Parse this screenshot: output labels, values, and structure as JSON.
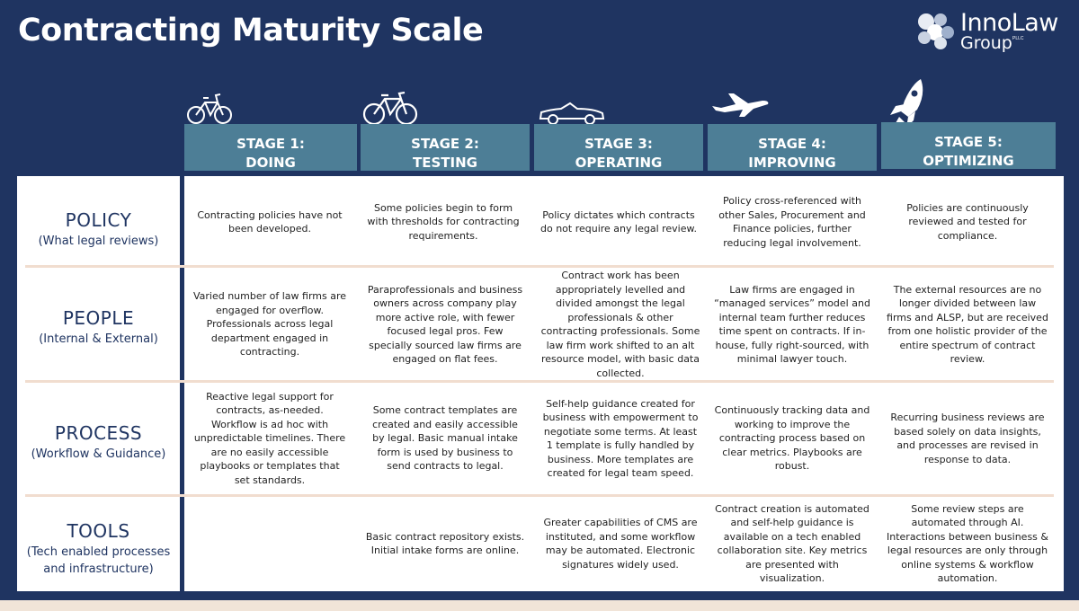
{
  "title": "Contracting Maturity Scale",
  "logo": {
    "line1": "InnoLaw",
    "line2": "Group",
    "suffix": "PLLC"
  },
  "colors": {
    "background": "#1f3461",
    "header": "#4d7e96",
    "separator": "#f1ddcf",
    "icon": "#ffffff"
  },
  "stages": [
    {
      "line1": "STAGE 1:",
      "line2": "DOING",
      "icon": "bicycle-icon"
    },
    {
      "line1": "STAGE 2:",
      "line2": "TESTING",
      "icon": "bicycle-icon"
    },
    {
      "line1": "STAGE 3:",
      "line2": "OPERATING",
      "icon": "car-icon"
    },
    {
      "line1": "STAGE 4:",
      "line2": "IMPROVING",
      "icon": "airplane-icon"
    },
    {
      "line1": "STAGE 5:",
      "line2": "OPTIMIZING",
      "icon": "rocket-icon"
    }
  ],
  "rows": [
    {
      "label": "POLICY",
      "sub": "(What legal reviews)",
      "cells": [
        "Contracting policies have not been developed.",
        "Some policies begin to form with thresholds for contracting requirements.",
        "Policy dictates which contracts do not require any legal review.",
        "Policy cross-referenced with other Sales, Procurement and Finance policies, further reducing legal involvement.",
        "Policies are continuously reviewed and tested for compliance."
      ]
    },
    {
      "label": "PEOPLE",
      "sub": "(Internal & External)",
      "cells": [
        "Varied number of law firms are engaged for overflow. Professionals across legal department engaged in contracting.",
        "Paraprofessionals and business owners across company play more active role, with fewer focused legal pros. Few specially sourced law firms are engaged on flat fees.",
        "Contract work has been appropriately levelled and divided amongst the legal professionals & other contracting professionals. Some law firm work shifted to an alt resource model, with basic data collected.",
        "Law firms are engaged in “managed services” model and internal team further reduces time spent on contracts. If in-house, fully right-sourced, with minimal lawyer touch.",
        "The external resources are no longer divided between law firms and ALSP, but are received from one holistic provider of the entire spectrum of contract review."
      ]
    },
    {
      "label": "PROCESS",
      "sub": "(Workflow & Guidance)",
      "cells": [
        "Reactive legal support for contracts, as-needed. Workflow is ad hoc with unpredictable timelines. There are no easily accessible playbooks or templates that set standards.",
        "Some contract templates are created and easily accessible by legal. Basic manual intake form is used by business to send contracts to legal.",
        "Self-help guidance created for business with empowerment to negotiate some terms. At least 1 template is fully handled by business. More templates are created for legal team speed.",
        "Continuously tracking data and working to improve the contracting process based on clear metrics. Playbooks are robust.",
        "Recurring business reviews are based solely on data insights, and processes are revised in response to data."
      ]
    },
    {
      "label": "TOOLS",
      "sub": "(Tech enabled processes and infrastructure)",
      "cells": [
        "",
        "Basic contract repository exists. Initial intake forms are online.",
        "Greater capabilities of CMS are instituted, and some workflow may be automated. Electronic signatures widely used.",
        "Contract creation is automated and self-help guidance is available on a tech enabled collaboration site. Key metrics are presented with visualization.",
        "Some review steps are automated through AI. Interactions between business & legal resources are only through online systems & workflow automation."
      ]
    }
  ]
}
